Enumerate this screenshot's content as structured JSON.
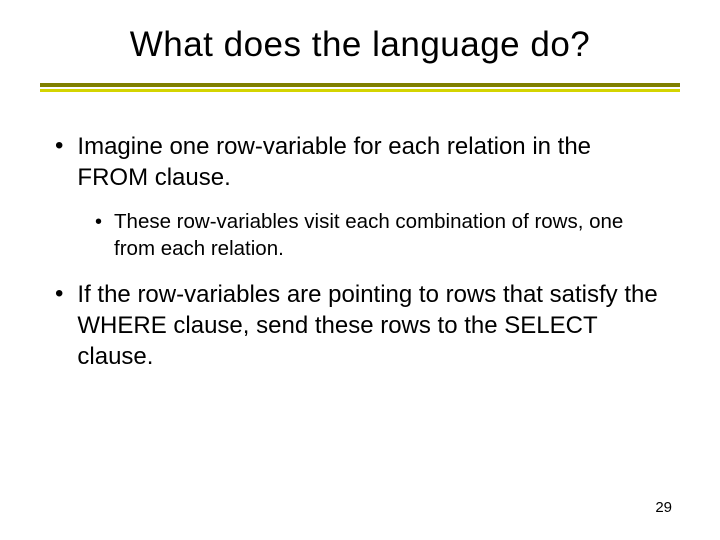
{
  "slide": {
    "title": "What does the language do?",
    "bullets": [
      {
        "level": 1,
        "text": "Imagine one row-variable for each relation in the FROM clause."
      },
      {
        "level": 2,
        "text": "These row-variables visit each combination of rows, one from each relation."
      },
      {
        "level": 1,
        "text": "If the row-variables are pointing to rows that satisfy the WHERE clause, send these rows to the SELECT clause."
      }
    ],
    "page_number": "29"
  },
  "style": {
    "background_color": "#ffffff",
    "title_fontsize": 35,
    "title_color": "#000000",
    "divider_color_top": "#808000",
    "divider_color_bottom": "#d4d400",
    "bullet_l1_fontsize": 24,
    "bullet_l2_fontsize": 20.5,
    "text_color": "#000000",
    "page_number_fontsize": 15,
    "font_family": "Verdana"
  }
}
